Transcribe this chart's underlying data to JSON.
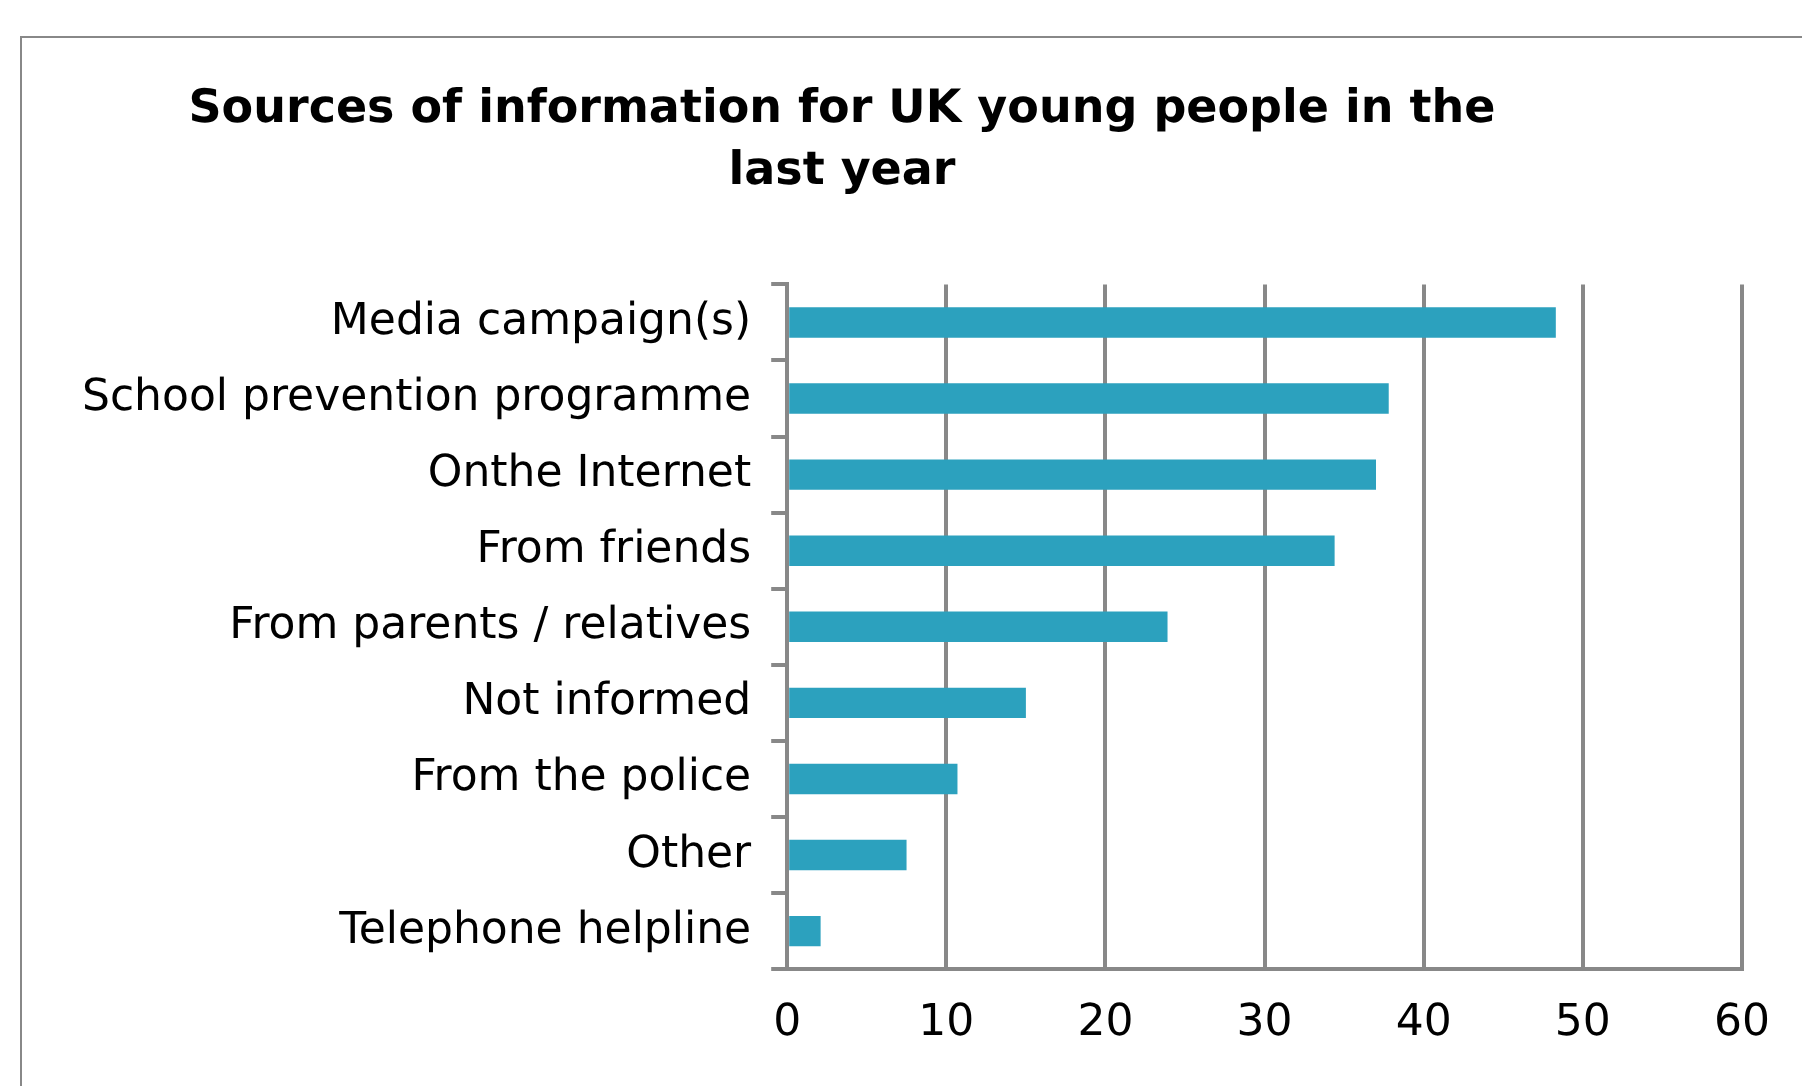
{
  "chart_data": {
    "type": "bar",
    "orientation": "horizontal",
    "title": "Sources of information for UK young people in the last year",
    "categories": [
      "Media campaign(s)",
      "School prevention programme",
      "Onthe Internet",
      "From friends",
      "From parents / relatives",
      "Not informed",
      "From the police",
      "Other",
      "Telephone helpline"
    ],
    "values": [
      48.3,
      37.8,
      37.0,
      34.4,
      23.9,
      15.0,
      10.7,
      7.5,
      2.1
    ],
    "color": "#2ca1be",
    "xlim": [
      0,
      60
    ],
    "xticks": [
      0,
      10,
      20,
      30,
      40,
      50,
      60
    ],
    "grid": "x",
    "legend": false
  }
}
